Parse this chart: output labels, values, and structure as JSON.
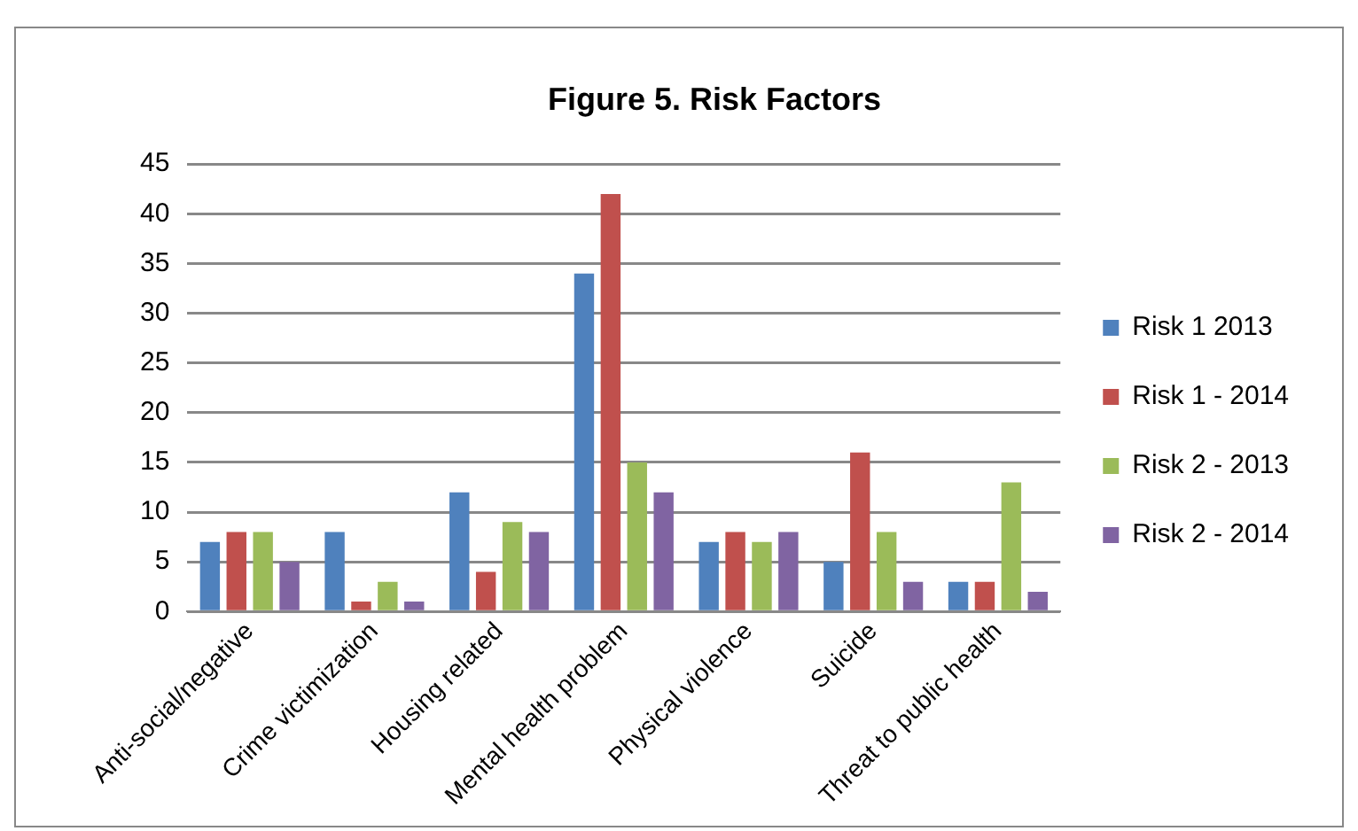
{
  "chart_data": {
    "type": "bar",
    "title": "Figure 5. Risk Factors",
    "categories": [
      "Anti-social/negative",
      "Crime victimization",
      "Housing related",
      "Mental health problem",
      "Physical violence",
      "Suicide",
      "Threat to public health"
    ],
    "series": [
      {
        "name": "Risk 1 2013",
        "color": "#4f81bd",
        "values": [
          7,
          8,
          12,
          34,
          7,
          5,
          3
        ]
      },
      {
        "name": "Risk 1 - 2014",
        "color": "#c0504d",
        "values": [
          8,
          1,
          4,
          42,
          8,
          16,
          3
        ]
      },
      {
        "name": "Risk 2 - 2013",
        "color": "#9bbb59",
        "values": [
          8,
          3,
          9,
          15,
          7,
          8,
          13
        ]
      },
      {
        "name": "Risk 2 - 2014",
        "color": "#8064a2",
        "values": [
          5,
          1,
          8,
          12,
          8,
          3,
          2
        ]
      }
    ],
    "ylim": [
      0,
      45
    ],
    "yticks": [
      0,
      5,
      10,
      15,
      20,
      25,
      30,
      35,
      40,
      45
    ],
    "grid": "y",
    "legend": "right"
  }
}
